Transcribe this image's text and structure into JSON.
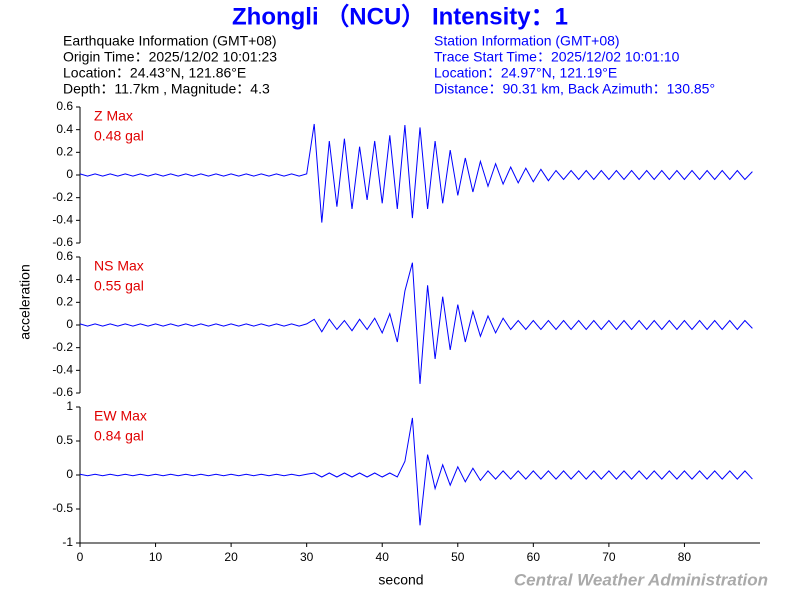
{
  "chart_data": {
    "type": "line",
    "title": "Zhongli （NCU） Intensity：1",
    "earthquake_info": [
      "Earthquake Information  (GMT+08)",
      "Origin Time：2025/12/02 10:01:23",
      "Location：24.43°N, 121.86°E",
      "Depth：11.7km , Magnitude：4.3"
    ],
    "station_info": [
      "Station Information  (GMT+08)",
      "Trace Start Time：2025/12/02 10:01:10",
      "Location：24.97°N, 121.19°E",
      "Distance：90.31 km, Back Azimuth：130.85°"
    ],
    "y_label": "acceleration",
    "x_label": "second",
    "credit": "Central Weather Administration",
    "color": "#0000ff",
    "xlim": [
      0,
      90
    ],
    "xticks": [
      0,
      10,
      20,
      30,
      40,
      50,
      60,
      70,
      80
    ],
    "x": [
      0,
      1,
      2,
      3,
      4,
      5,
      6,
      7,
      8,
      9,
      10,
      11,
      12,
      13,
      14,
      15,
      16,
      17,
      18,
      19,
      20,
      21,
      22,
      23,
      24,
      25,
      26,
      27,
      28,
      29,
      30,
      31,
      32,
      33,
      34,
      35,
      36,
      37,
      38,
      39,
      40,
      41,
      42,
      43,
      44,
      45,
      46,
      47,
      48,
      49,
      50,
      51,
      52,
      53,
      54,
      55,
      56,
      57,
      58,
      59,
      60,
      61,
      62,
      63,
      64,
      65,
      66,
      67,
      68,
      69,
      70,
      71,
      72,
      73,
      74,
      75,
      76,
      77,
      78,
      79,
      80,
      81,
      82,
      83,
      84,
      85,
      86,
      87,
      88,
      89
    ],
    "panels": [
      {
        "name": "Z Max",
        "max_label": "0.48 gal",
        "ylim": [
          -0.6,
          0.6
        ],
        "yticks": [
          -0.6,
          -0.4,
          -0.2,
          0,
          0.2,
          0.4,
          0.6
        ],
        "values": [
          0.01,
          -0.01,
          0.01,
          -0.01,
          0.01,
          -0.01,
          0.01,
          -0.01,
          0.01,
          -0.01,
          0.01,
          -0.01,
          0.01,
          -0.01,
          0.01,
          -0.01,
          0.01,
          -0.01,
          0.01,
          -0.01,
          0.01,
          -0.01,
          0.01,
          -0.01,
          0.01,
          -0.01,
          0.01,
          -0.01,
          0.01,
          -0.01,
          0.01,
          0.45,
          -0.42,
          0.3,
          -0.28,
          0.32,
          -0.3,
          0.25,
          -0.22,
          0.3,
          -0.25,
          0.35,
          -0.3,
          0.44,
          -0.38,
          0.42,
          -0.3,
          0.3,
          -0.25,
          0.22,
          -0.18,
          0.15,
          -0.15,
          0.12,
          -0.1,
          0.1,
          -0.08,
          0.07,
          -0.07,
          0.06,
          -0.06,
          0.05,
          -0.05,
          0.04,
          -0.04,
          0.04,
          -0.04,
          0.04,
          -0.04,
          0.04,
          -0.04,
          0.04,
          -0.04,
          0.04,
          -0.04,
          0.04,
          -0.04,
          0.04,
          -0.04,
          0.04,
          -0.04,
          0.04,
          -0.04,
          0.04,
          -0.04,
          0.04,
          -0.04,
          0.04,
          -0.04,
          0.03
        ]
      },
      {
        "name": "NS Max",
        "max_label": "0.55 gal",
        "ylim": [
          -0.6,
          0.6
        ],
        "yticks": [
          -0.6,
          -0.4,
          -0.2,
          0,
          0.2,
          0.4,
          0.6
        ],
        "values": [
          0.01,
          -0.01,
          0.01,
          -0.01,
          0.01,
          -0.01,
          0.01,
          -0.01,
          0.01,
          -0.01,
          0.01,
          -0.01,
          0.01,
          -0.01,
          0.01,
          -0.01,
          0.01,
          -0.01,
          0.01,
          -0.01,
          0.01,
          -0.01,
          0.01,
          -0.01,
          0.01,
          -0.01,
          0.01,
          -0.01,
          0.01,
          -0.01,
          0.01,
          0.05,
          -0.06,
          0.05,
          -0.04,
          0.04,
          -0.05,
          0.05,
          -0.04,
          0.06,
          -0.07,
          0.1,
          -0.15,
          0.3,
          0.55,
          -0.52,
          0.35,
          -0.3,
          0.25,
          -0.22,
          0.18,
          -0.15,
          0.12,
          -0.1,
          0.08,
          -0.07,
          0.06,
          -0.04,
          0.04,
          -0.04,
          0.04,
          -0.04,
          0.04,
          -0.04,
          0.04,
          -0.04,
          0.04,
          -0.04,
          0.04,
          -0.04,
          0.04,
          -0.04,
          0.04,
          -0.04,
          0.04,
          -0.04,
          0.04,
          -0.04,
          0.04,
          -0.04,
          0.04,
          -0.04,
          0.04,
          -0.04,
          0.04,
          -0.04,
          0.04,
          -0.04,
          0.04,
          -0.03
        ]
      },
      {
        "name": "EW Max",
        "max_label": "0.84 gal",
        "ylim": [
          -1,
          1
        ],
        "yticks": [
          -1,
          -0.5,
          0,
          0.5,
          1
        ],
        "values": [
          0.01,
          -0.01,
          0.01,
          -0.01,
          0.01,
          -0.01,
          0.01,
          -0.01,
          0.01,
          -0.01,
          0.01,
          -0.01,
          0.01,
          -0.01,
          0.01,
          -0.01,
          0.01,
          -0.01,
          0.01,
          -0.01,
          0.01,
          -0.01,
          0.01,
          -0.01,
          0.01,
          -0.01,
          0.01,
          -0.01,
          0.01,
          -0.01,
          0.01,
          0.03,
          -0.03,
          0.03,
          -0.03,
          0.03,
          -0.03,
          0.03,
          -0.03,
          0.03,
          -0.03,
          0.03,
          -0.03,
          0.2,
          0.84,
          -0.74,
          0.3,
          -0.2,
          0.15,
          -0.15,
          0.12,
          -0.1,
          0.1,
          -0.08,
          0.06,
          -0.06,
          0.06,
          -0.06,
          0.06,
          -0.06,
          0.06,
          -0.06,
          0.06,
          -0.06,
          0.06,
          -0.06,
          0.06,
          -0.06,
          0.06,
          -0.06,
          0.06,
          -0.06,
          0.06,
          -0.06,
          0.06,
          -0.06,
          0.06,
          -0.06,
          0.06,
          -0.06,
          0.06,
          -0.06,
          0.06,
          -0.06,
          0.06,
          -0.06,
          0.06,
          -0.06,
          0.06,
          -0.06
        ]
      }
    ]
  }
}
